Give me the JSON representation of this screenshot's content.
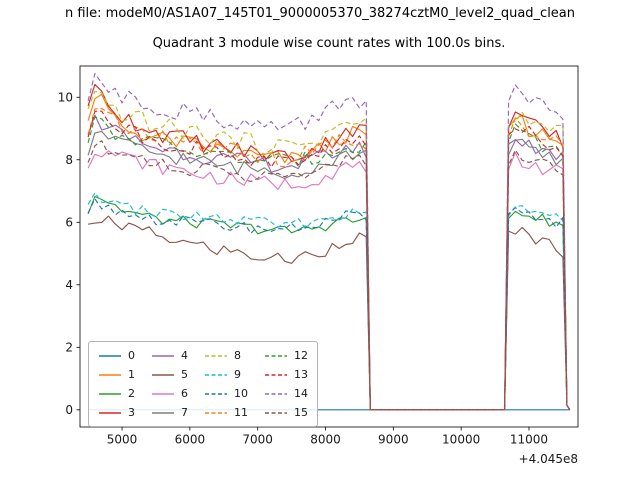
{
  "figure": {
    "suptitle": "n file: modeM0/AS1A07_145T01_9000005370_38274cztM0_level2_quad_clean",
    "title": "Quadrant 3 module wise count rates with 100.0s bins."
  },
  "chart_data": {
    "type": "line",
    "title": "Quadrant 3 module wise count rates with 100.0s bins.",
    "xlabel": "",
    "ylabel": "",
    "x_offset": "+4.045e8",
    "xlim": [
      4380,
      11723
    ],
    "ylim": [
      -0.55,
      11.0
    ],
    "x_ticks": [
      5000,
      6000,
      7000,
      8000,
      9000,
      10000,
      11000
    ],
    "y_ticks": [
      0,
      2,
      4,
      6,
      8,
      10
    ],
    "legend": {
      "location": "lower left",
      "columns": 4
    },
    "x_nodes": [
      4500,
      4600,
      5000,
      5500,
      6000,
      6500,
      7000,
      7500,
      8000,
      8300,
      8600,
      8660,
      10640,
      10700,
      10800,
      11000,
      11200,
      11400,
      11500,
      11560,
      11600
    ],
    "series": [
      {
        "name": "0",
        "color": "#1f77b4",
        "dash": false,
        "noise": 0,
        "y_nodes": [
          0,
          0,
          0,
          0,
          0,
          0,
          0,
          0,
          0,
          0,
          0,
          0,
          0,
          0,
          0,
          0,
          0,
          0,
          0,
          0,
          0
        ]
      },
      {
        "name": "1",
        "color": "#ff7f0e",
        "dash": false,
        "noise": 0.28,
        "y_nodes": [
          9.0,
          10.1,
          9.0,
          8.7,
          8.5,
          8.3,
          8.1,
          8.0,
          8.4,
          8.8,
          8.8,
          0,
          0,
          8.8,
          9.4,
          9.0,
          8.8,
          8.7,
          8.5,
          0.15,
          0
        ]
      },
      {
        "name": "2",
        "color": "#2ca02c",
        "dash": false,
        "noise": 0.18,
        "y_nodes": [
          6.3,
          6.9,
          6.4,
          6.1,
          6.0,
          5.9,
          5.8,
          5.7,
          5.9,
          6.1,
          6.0,
          0,
          0,
          6.1,
          6.4,
          6.2,
          6.1,
          6.0,
          5.9,
          0.15,
          0
        ]
      },
      {
        "name": "3",
        "color": "#d62728",
        "dash": false,
        "noise": 0.3,
        "y_nodes": [
          9.5,
          10.3,
          9.4,
          8.9,
          8.6,
          8.4,
          8.2,
          8.1,
          8.5,
          9.0,
          8.9,
          0,
          0,
          9.0,
          9.5,
          9.1,
          8.9,
          8.7,
          8.6,
          0.15,
          0
        ]
      },
      {
        "name": "4",
        "color": "#9467bd",
        "dash": false,
        "noise": 0.26,
        "y_nodes": [
          8.6,
          9.3,
          8.8,
          8.4,
          8.2,
          8.0,
          7.9,
          7.8,
          8.1,
          8.4,
          8.3,
          0,
          0,
          8.4,
          8.8,
          8.5,
          8.3,
          8.2,
          8.1,
          0.15,
          0
        ]
      },
      {
        "name": "5",
        "color": "#8c564b",
        "dash": false,
        "noise": 0.22,
        "y_nodes": [
          5.8,
          6.1,
          5.9,
          5.6,
          5.3,
          5.1,
          4.9,
          4.8,
          5.1,
          5.5,
          5.5,
          0,
          0,
          5.6,
          5.8,
          5.6,
          5.4,
          5.2,
          5.1,
          0.15,
          0
        ]
      },
      {
        "name": "6",
        "color": "#e377c2",
        "dash": false,
        "noise": 0.24,
        "y_nodes": [
          7.9,
          8.4,
          8.1,
          7.8,
          7.6,
          7.4,
          7.3,
          7.2,
          7.5,
          7.8,
          7.7,
          0,
          0,
          7.8,
          8.1,
          7.9,
          7.7,
          7.6,
          7.5,
          0.15,
          0
        ]
      },
      {
        "name": "7",
        "color": "#7f7f7f",
        "dash": false,
        "noise": 0.24,
        "y_nodes": [
          8.3,
          8.9,
          8.5,
          8.2,
          8.0,
          7.8,
          7.7,
          7.6,
          7.9,
          8.2,
          8.1,
          0,
          0,
          8.2,
          8.6,
          8.3,
          8.1,
          8.0,
          7.9,
          0.15,
          0
        ]
      },
      {
        "name": "8",
        "color": "#bcbd22",
        "dash": true,
        "noise": 0.3,
        "y_nodes": [
          9.4,
          10.0,
          9.5,
          9.1,
          8.9,
          8.7,
          8.5,
          8.4,
          8.8,
          9.2,
          9.1,
          0,
          0,
          9.0,
          9.5,
          9.2,
          9.0,
          8.9,
          8.8,
          0.15,
          0
        ]
      },
      {
        "name": "9",
        "color": "#17becf",
        "dash": true,
        "noise": 0.18,
        "y_nodes": [
          6.4,
          6.9,
          6.5,
          6.3,
          6.2,
          6.1,
          6.0,
          5.9,
          6.1,
          6.3,
          6.2,
          0,
          0,
          6.2,
          6.5,
          6.3,
          6.2,
          6.1,
          6.0,
          0.15,
          0
        ]
      },
      {
        "name": "10",
        "color": "#1f77b4",
        "dash": true,
        "noise": 0.18,
        "y_nodes": [
          6.2,
          6.6,
          6.3,
          6.1,
          6.0,
          5.9,
          5.8,
          5.8,
          6.0,
          6.2,
          6.1,
          0,
          0,
          6.1,
          6.4,
          6.2,
          6.1,
          6.0,
          6.0,
          0.15,
          0
        ]
      },
      {
        "name": "11",
        "color": "#ff7f0e",
        "dash": true,
        "noise": 0.28,
        "y_nodes": [
          8.8,
          9.6,
          9.1,
          8.7,
          8.5,
          8.3,
          8.1,
          8.0,
          8.4,
          8.7,
          8.6,
          0,
          0,
          8.7,
          9.2,
          8.9,
          8.7,
          8.5,
          8.4,
          0.15,
          0
        ]
      },
      {
        "name": "12",
        "color": "#2ca02c",
        "dash": true,
        "noise": 0.26,
        "y_nodes": [
          8.5,
          9.2,
          8.8,
          8.5,
          8.3,
          8.1,
          8.0,
          7.9,
          8.2,
          8.5,
          8.4,
          0,
          0,
          8.5,
          8.9,
          8.6,
          8.4,
          8.3,
          8.2,
          0.15,
          0
        ]
      },
      {
        "name": "13",
        "color": "#d62728",
        "dash": true,
        "noise": 0.28,
        "y_nodes": [
          8.9,
          9.5,
          9.0,
          8.6,
          8.4,
          8.2,
          8.0,
          7.9,
          8.3,
          8.6,
          8.5,
          0,
          0,
          8.6,
          9.0,
          8.8,
          8.6,
          8.4,
          8.3,
          0.15,
          0
        ]
      },
      {
        "name": "14",
        "color": "#9467bd",
        "dash": true,
        "noise": 0.32,
        "y_nodes": [
          10.0,
          10.6,
          10.1,
          9.7,
          9.5,
          9.3,
          9.1,
          9.0,
          9.5,
          10.0,
          9.9,
          0,
          0,
          9.6,
          10.2,
          9.9,
          9.7,
          9.5,
          9.4,
          0.15,
          0
        ]
      },
      {
        "name": "15",
        "color": "#8c564b",
        "dash": true,
        "noise": 0.24,
        "y_nodes": [
          8.1,
          8.6,
          8.2,
          7.9,
          7.7,
          7.6,
          7.5,
          7.4,
          7.7,
          8.0,
          7.9,
          0,
          0,
          8.0,
          8.3,
          8.1,
          7.9,
          7.8,
          7.7,
          0.15,
          0
        ]
      }
    ]
  }
}
